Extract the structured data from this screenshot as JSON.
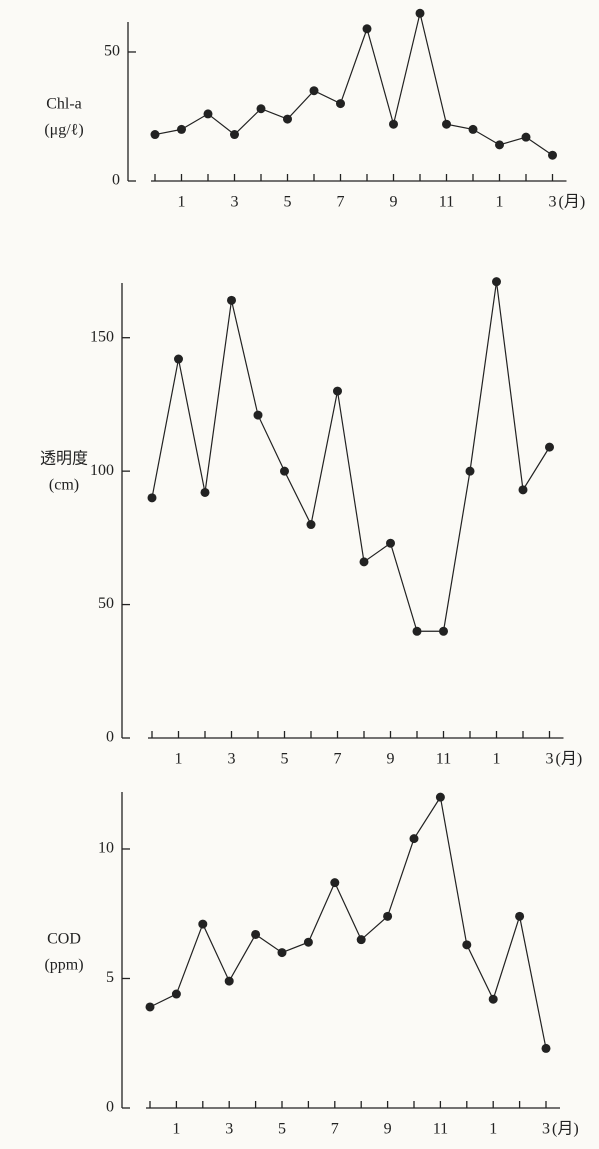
{
  "chart_data": [
    {
      "type": "line",
      "ylabel": [
        "Chl-a",
        "(μg/ℓ)"
      ],
      "xlabel": "(月)",
      "categories": [
        null,
        "1",
        null,
        "3",
        null,
        "5",
        null,
        "7",
        null,
        "9",
        null,
        "11",
        null,
        "1",
        null,
        "3"
      ],
      "series": [
        {
          "color": "#222222",
          "values": [
            18,
            20,
            26,
            18,
            28,
            24,
            35,
            30,
            59,
            22,
            65,
            22,
            20,
            14,
            17,
            10
          ]
        }
      ],
      "ylim": [
        0,
        66
      ],
      "yticks": [
        0,
        50
      ]
    },
    {
      "type": "line",
      "ylabel": [
        "透明度",
        "(cm)"
      ],
      "xlabel": "(月)",
      "categories": [
        null,
        "1",
        null,
        "3",
        null,
        "5",
        null,
        "7",
        null,
        "9",
        null,
        "11",
        null,
        "1",
        null,
        "3"
      ],
      "series": [
        {
          "color": "#222222",
          "values": [
            90,
            142,
            92,
            164,
            121,
            100,
            80,
            130,
            66,
            73,
            40,
            40,
            100,
            171,
            93,
            109
          ]
        }
      ],
      "ylim": [
        0,
        172
      ],
      "yticks": [
        0,
        50,
        100,
        150
      ]
    },
    {
      "type": "line",
      "ylabel": [
        "COD",
        "(ppm)"
      ],
      "xlabel": "(月)",
      "categories": [
        null,
        "1",
        null,
        "3",
        null,
        "5",
        null,
        "7",
        null,
        "9",
        null,
        "11",
        null,
        "1",
        null,
        "3"
      ],
      "series": [
        {
          "color": "#222222",
          "values": [
            3.9,
            4.4,
            7.1,
            4.9,
            6.7,
            6.0,
            6.4,
            8.7,
            6.5,
            7.4,
            10.4,
            12.0,
            6.3,
            4.2,
            7.4,
            2.3
          ]
        }
      ],
      "ylim": [
        0,
        12.2
      ],
      "yticks": [
        0,
        5,
        10
      ]
    }
  ]
}
